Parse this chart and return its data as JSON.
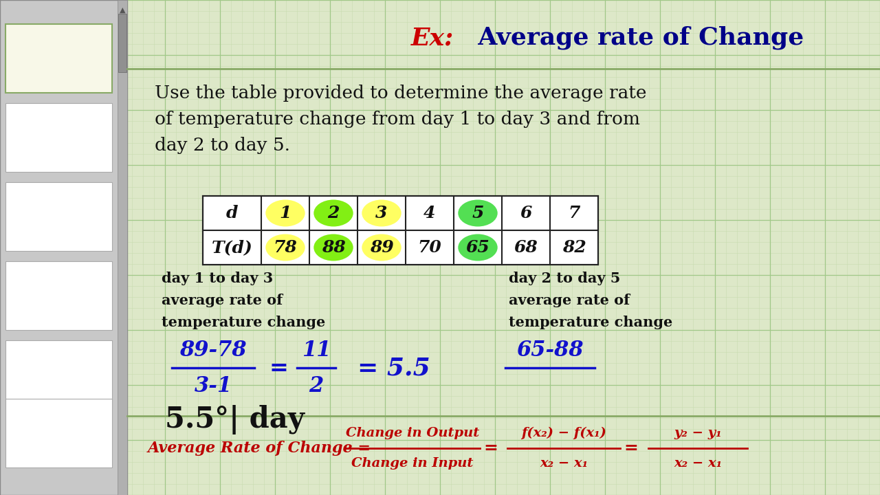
{
  "title_ex": "Ex:",
  "title_main": "  Average rate of Change",
  "problem_text_line1": "Use the table provided to determine the average rate",
  "problem_text_line2": "of temperature change from day 1 to day 3 and from",
  "problem_text_line3": "day 2 to day 5.",
  "table_headers": [
    "d",
    "1",
    "2",
    "3",
    "4",
    "5",
    "6",
    "7"
  ],
  "table_values": [
    "T(d)",
    "78",
    "88",
    "89",
    "70",
    "65",
    "68",
    "82"
  ],
  "highlight_colors": {
    "1": "#ffff55",
    "2": "#77ee00",
    "3": "#ffff55",
    "5": "#44dd44"
  },
  "left_label1": "day 1 to day 3",
  "left_label2": "average rate of",
  "left_label3": "temperature change",
  "right_label1": "day 2 to day 5",
  "right_label2": "average rate of",
  "right_label3": "temperature change",
  "left_num": "89-78",
  "left_den": "3-1",
  "left_eq1_num": "11",
  "left_eq1_den": "2",
  "left_result": "= 5.5",
  "right_num": "65-88",
  "answer": "5.5°| day",
  "formula_left": "Average Rate of Change = ",
  "formula_num": "Change in Output",
  "formula_den": "Change in Input",
  "formula_mid_num": "f(x₂) − f(x₁)",
  "formula_mid_den": "x₂ − x₁",
  "formula_right_num": "y₂ − y₁",
  "formula_right_den": "x₂ − x₁",
  "bg_color": "#dde8c8",
  "grid_minor_color": "#c8ddb0",
  "grid_major_color": "#a0c888",
  "sidebar_color": "#c8c8c8",
  "title_ex_color": "#cc0000",
  "title_main_color": "#000088",
  "text_color": "#111111",
  "blue_color": "#1111cc",
  "red_formula_color": "#bb0000",
  "table_line_color": "#222222",
  "divider_color": "#88aa66"
}
